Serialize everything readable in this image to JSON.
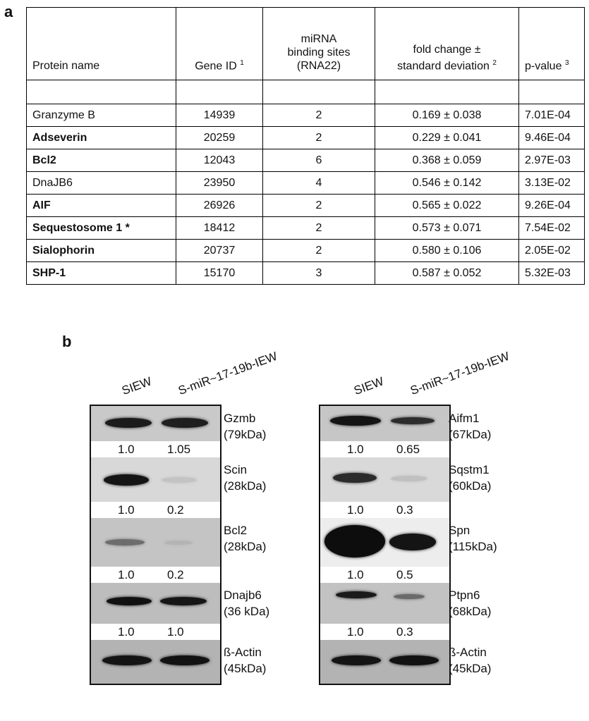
{
  "panel_a_label": "a",
  "panel_b_label": "b",
  "table": {
    "headers": {
      "protein": "Protein name",
      "gene_id": "Gene ID",
      "gene_id_sup": "1",
      "mirna_line1": "miRNA",
      "mirna_line2": "binding sites",
      "mirna_line3": "(RNA22)",
      "fold_line1": "fold change ±",
      "fold_line2": "standard deviation",
      "fold_sup": "2",
      "pvalue": "p-value",
      "pvalue_sup": "3"
    },
    "rows": [
      {
        "protein": "Granzyme B",
        "bold": false,
        "gene_id": "14939",
        "sites": "2",
        "fold": "0.169 ± 0.038",
        "p": "7.01E-04"
      },
      {
        "protein": "Adseverin",
        "bold": true,
        "gene_id": "20259",
        "sites": "2",
        "fold": "0.229 ± 0.041",
        "p": "9.46E-04"
      },
      {
        "protein": "Bcl2",
        "bold": true,
        "gene_id": "12043",
        "sites": "6",
        "fold": "0.368 ± 0.059",
        "p": "2.97E-03"
      },
      {
        "protein": "DnaJB6",
        "bold": false,
        "gene_id": "23950",
        "sites": "4",
        "fold": "0.546 ± 0.142",
        "p": "3.13E-02"
      },
      {
        "protein": "AIF",
        "bold": true,
        "gene_id": "26926",
        "sites": "2",
        "fold": "0.565 ± 0.022",
        "p": "9.26E-04"
      },
      {
        "protein": "Sequestosome 1 *",
        "bold": true,
        "gene_id": "18412",
        "sites": "2",
        "fold": "0.573 ± 0.071",
        "p": "7.54E-02"
      },
      {
        "protein": "Sialophorin",
        "bold": true,
        "gene_id": "20737",
        "sites": "2",
        "fold": "0.580 ± 0.106",
        "p": "2.05E-02"
      },
      {
        "protein": "SHP-1",
        "bold": true,
        "gene_id": "15170",
        "sites": "3",
        "fold": "0.587 ± 0.052",
        "p": "5.32E-03"
      }
    ]
  },
  "blots": {
    "lane1": "SIEW",
    "lane2": "S-miR~17-19b-IEW",
    "left": [
      {
        "name": "Gzmb",
        "kda": "(79kDa)",
        "q1": "1.0",
        "q2": "1.05"
      },
      {
        "name": "Scin",
        "kda": "(28kDa)",
        "q1": "1.0",
        "q2": "0.2"
      },
      {
        "name": "Bcl2",
        "kda": "(28kDa)",
        "q1": "1.0",
        "q2": "0.2"
      },
      {
        "name": "Dnajb6",
        "kda": "(36 kDa)",
        "q1": "1.0",
        "q2": "1.0"
      },
      {
        "name": "ß-Actin",
        "kda": "(45kDa)"
      }
    ],
    "right": [
      {
        "name": "Aifm1",
        "kda": "(67kDa)",
        "q1": "1.0",
        "q2": "0.65"
      },
      {
        "name": "Sqstm1",
        "kda": "(60kDa)",
        "q1": "1.0",
        "q2": "0.3"
      },
      {
        "name": "Spn",
        "kda": "(115kDa)",
        "q1": "1.0",
        "q2": "0.5"
      },
      {
        "name": "Ptpn6",
        "kda": "(68kDa)",
        "q1": "1.0",
        "q2": "0.3"
      },
      {
        "name": "ß-Actin",
        "kda": "(45kDa)"
      }
    ]
  }
}
